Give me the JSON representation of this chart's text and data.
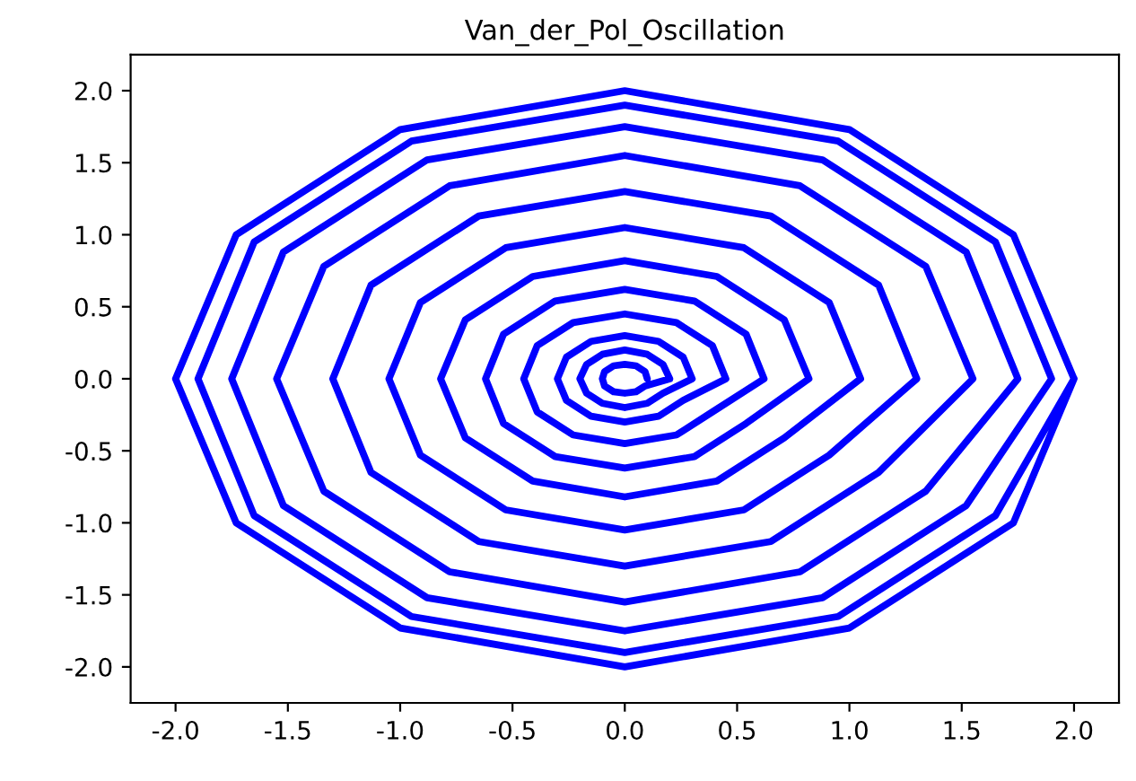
{
  "chart_data": {
    "type": "line",
    "title": "Van_der_Pol_Oscillation",
    "series": [
      {
        "color": "#0000ff",
        "x": [
          0.1,
          0.09,
          0.05,
          0,
          -0.05,
          -0.09,
          -0.1,
          -0.09,
          -0.05,
          0,
          0.05,
          0.09,
          0.2,
          0.17,
          0.1,
          0,
          -0.1,
          -0.17,
          -0.2,
          -0.17,
          -0.1,
          0,
          0.1,
          0.17,
          0.3,
          0.26,
          0.15,
          0,
          -0.15,
          -0.26,
          -0.3,
          -0.26,
          -0.15,
          0,
          0.15,
          0.26,
          0.45,
          0.39,
          0.23,
          0,
          -0.23,
          -0.39,
          -0.45,
          -0.39,
          -0.23,
          0,
          0.23,
          0.39,
          0.62,
          0.54,
          0.31,
          0,
          -0.31,
          -0.54,
          -0.62,
          -0.54,
          -0.31,
          0,
          0.31,
          0.54,
          0.82,
          0.71,
          0.41,
          0,
          -0.41,
          -0.71,
          -0.82,
          -0.71,
          -0.41,
          0,
          0.41,
          0.71,
          1.05,
          0.91,
          0.53,
          0,
          -0.53,
          -0.91,
          -1.05,
          -0.91,
          -0.53,
          0,
          0.53,
          0.91,
          1.3,
          1.13,
          0.65,
          0,
          -0.65,
          -1.13,
          -1.3,
          -1.13,
          -0.65,
          0,
          0.65,
          1.13,
          1.55,
          1.34,
          0.78,
          0,
          -0.78,
          -1.34,
          -1.55,
          -1.34,
          -0.78,
          0,
          0.78,
          1.34,
          1.75,
          1.52,
          0.88,
          0,
          -0.88,
          -1.52,
          -1.75,
          -1.52,
          -0.88,
          0,
          0.88,
          1.52,
          1.9,
          1.65,
          0.95,
          0,
          -0.95,
          -1.65,
          -1.9,
          -1.65,
          -0.95,
          0,
          0.95,
          1.65,
          2.0,
          1.73,
          1.0,
          0,
          -1.0,
          -1.73,
          -2.0,
          -1.73,
          -1.0,
          0,
          1.0,
          1.73,
          2.0
        ],
        "values": [
          0,
          0.05,
          0.09,
          0.1,
          0.09,
          0.05,
          0,
          -0.05,
          -0.09,
          -0.1,
          -0.09,
          -0.05,
          0,
          0.1,
          0.17,
          0.2,
          0.17,
          0.1,
          0,
          -0.1,
          -0.17,
          -0.2,
          -0.17,
          -0.1,
          0,
          0.15,
          0.26,
          0.3,
          0.26,
          0.15,
          0,
          -0.15,
          -0.26,
          -0.3,
          -0.26,
          -0.15,
          0,
          0.23,
          0.39,
          0.45,
          0.39,
          0.23,
          0,
          -0.23,
          -0.39,
          -0.45,
          -0.39,
          -0.23,
          0,
          0.31,
          0.54,
          0.62,
          0.54,
          0.31,
          0,
          -0.31,
          -0.54,
          -0.62,
          -0.54,
          -0.31,
          0,
          0.41,
          0.71,
          0.82,
          0.71,
          0.41,
          0,
          -0.41,
          -0.71,
          -0.82,
          -0.71,
          -0.41,
          0,
          0.53,
          0.91,
          1.05,
          0.91,
          0.53,
          0,
          -0.53,
          -0.91,
          -1.05,
          -0.91,
          -0.53,
          0,
          0.65,
          1.13,
          1.3,
          1.13,
          0.65,
          0,
          -0.65,
          -1.13,
          -1.3,
          -1.13,
          -0.65,
          0,
          0.78,
          1.34,
          1.55,
          1.34,
          0.78,
          0,
          -0.78,
          -1.34,
          -1.55,
          -1.34,
          -0.78,
          0,
          0.88,
          1.52,
          1.75,
          1.52,
          0.88,
          0,
          -0.88,
          -1.52,
          -1.75,
          -1.52,
          -0.88,
          0,
          0.95,
          1.65,
          1.9,
          1.65,
          0.95,
          0,
          -0.95,
          -1.65,
          -1.9,
          -1.65,
          -0.95,
          0,
          1.0,
          1.73,
          2.0,
          1.73,
          1.0,
          0,
          -1.0,
          -1.73,
          -2.0,
          -1.73,
          -1.0,
          0
        ]
      }
    ],
    "xlim": [
      -2.2,
      2.2
    ],
    "ylim": [
      -2.25,
      2.25
    ],
    "xticks": [
      {
        "value": -2,
        "label": "-2.0"
      },
      -1.5,
      {
        "value": -1,
        "label": "-1.0"
      },
      -0.5,
      {
        "value": 0,
        "label": "0.0"
      },
      0.5,
      {
        "value": 1,
        "label": "1.0"
      },
      1.5,
      {
        "value": 2,
        "label": "2.0"
      }
    ],
    "yticks": [
      {
        "value": -2,
        "label": "-2.0"
      },
      -1.5,
      {
        "value": -1,
        "label": "-1.0"
      },
      -0.5,
      {
        "value": 0,
        "label": "0.0"
      },
      0.5,
      {
        "value": 1,
        "label": "1.0"
      },
      1.5,
      {
        "value": 2,
        "label": "2.0"
      }
    ],
    "line_style": "solid"
  }
}
